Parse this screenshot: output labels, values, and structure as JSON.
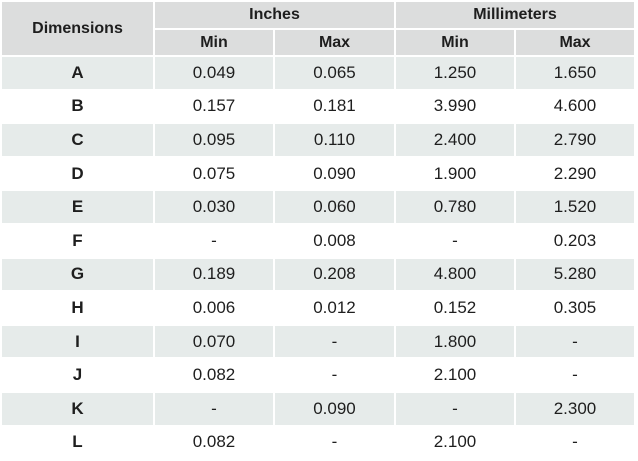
{
  "header": {
    "dimensions": "Dimensions",
    "groups": [
      "Inches",
      "Millimeters"
    ],
    "subheaders": [
      "Min",
      "Max",
      "Min",
      "Max"
    ]
  },
  "rows": [
    [
      "A",
      "0.049",
      "0.065",
      "1.250",
      "1.650"
    ],
    [
      "B",
      "0.157",
      "0.181",
      "3.990",
      "4.600"
    ],
    [
      "C",
      "0.095",
      "0.110",
      "2.400",
      "2.790"
    ],
    [
      "D",
      "0.075",
      "0.090",
      "1.900",
      "2.290"
    ],
    [
      "E",
      "0.030",
      "0.060",
      "0.780",
      "1.520"
    ],
    [
      "F",
      "-",
      "0.008",
      "-",
      "0.203"
    ],
    [
      "G",
      "0.189",
      "0.208",
      "4.800",
      "5.280"
    ],
    [
      "H",
      "0.006",
      "0.012",
      "0.152",
      "0.305"
    ],
    [
      "I",
      "0.070",
      "-",
      "1.800",
      "-"
    ],
    [
      "J",
      "0.082",
      "-",
      "2.100",
      "-"
    ],
    [
      "K",
      "-",
      "0.090",
      "-",
      "2.300"
    ],
    [
      "L",
      "0.082",
      "-",
      "2.100",
      "-"
    ]
  ]
}
